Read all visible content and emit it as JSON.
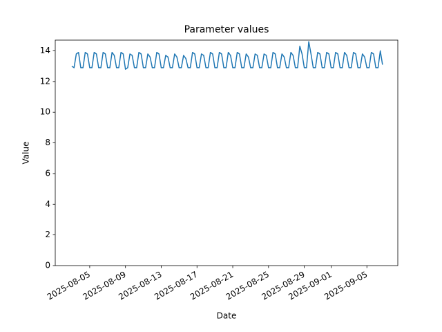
{
  "chart_data": {
    "type": "line",
    "title": "Parameter values",
    "x_label": "Date",
    "y_label": "Value",
    "x": [
      "2025-08-03T00:00",
      "2025-08-03T06:00",
      "2025-08-03T12:00",
      "2025-08-03T18:00",
      "2025-08-04T00:00",
      "2025-08-04T06:00",
      "2025-08-04T12:00",
      "2025-08-04T18:00",
      "2025-08-05T00:00",
      "2025-08-05T06:00",
      "2025-08-05T12:00",
      "2025-08-05T18:00",
      "2025-08-06T00:00",
      "2025-08-06T06:00",
      "2025-08-06T12:00",
      "2025-08-06T18:00",
      "2025-08-07T00:00",
      "2025-08-07T06:00",
      "2025-08-07T12:00",
      "2025-08-07T18:00",
      "2025-08-08T00:00",
      "2025-08-08T06:00",
      "2025-08-08T12:00",
      "2025-08-08T18:00",
      "2025-08-09T00:00",
      "2025-08-09T06:00",
      "2025-08-09T12:00",
      "2025-08-09T18:00",
      "2025-08-10T00:00",
      "2025-08-10T06:00",
      "2025-08-10T12:00",
      "2025-08-10T18:00",
      "2025-08-11T00:00",
      "2025-08-11T06:00",
      "2025-08-11T12:00",
      "2025-08-11T18:00",
      "2025-08-12T00:00",
      "2025-08-12T06:00",
      "2025-08-12T12:00",
      "2025-08-12T18:00",
      "2025-08-13T00:00",
      "2025-08-13T06:00",
      "2025-08-13T12:00",
      "2025-08-13T18:00",
      "2025-08-14T00:00",
      "2025-08-14T06:00",
      "2025-08-14T12:00",
      "2025-08-14T18:00",
      "2025-08-15T00:00",
      "2025-08-15T06:00",
      "2025-08-15T12:00",
      "2025-08-15T18:00",
      "2025-08-16T00:00",
      "2025-08-16T06:00",
      "2025-08-16T12:00",
      "2025-08-16T18:00",
      "2025-08-17T00:00",
      "2025-08-17T06:00",
      "2025-08-17T12:00",
      "2025-08-17T18:00",
      "2025-08-18T00:00",
      "2025-08-18T06:00",
      "2025-08-18T12:00",
      "2025-08-18T18:00",
      "2025-08-19T00:00",
      "2025-08-19T06:00",
      "2025-08-19T12:00",
      "2025-08-19T18:00",
      "2025-08-20T00:00",
      "2025-08-20T06:00",
      "2025-08-20T12:00",
      "2025-08-20T18:00",
      "2025-08-21T00:00",
      "2025-08-21T06:00",
      "2025-08-21T12:00",
      "2025-08-21T18:00",
      "2025-08-22T00:00",
      "2025-08-22T06:00",
      "2025-08-22T12:00",
      "2025-08-22T18:00",
      "2025-08-23T00:00",
      "2025-08-23T06:00",
      "2025-08-23T12:00",
      "2025-08-23T18:00",
      "2025-08-24T00:00",
      "2025-08-24T06:00",
      "2025-08-24T12:00",
      "2025-08-24T18:00",
      "2025-08-25T00:00",
      "2025-08-25T06:00",
      "2025-08-25T12:00",
      "2025-08-25T18:00",
      "2025-08-26T00:00",
      "2025-08-26T06:00",
      "2025-08-26T12:00",
      "2025-08-26T18:00",
      "2025-08-27T00:00",
      "2025-08-27T06:00",
      "2025-08-27T12:00",
      "2025-08-27T18:00",
      "2025-08-28T00:00",
      "2025-08-28T06:00",
      "2025-08-28T12:00",
      "2025-08-28T18:00",
      "2025-08-29T00:00",
      "2025-08-29T06:00",
      "2025-08-29T12:00",
      "2025-08-29T18:00",
      "2025-08-30T00:00",
      "2025-08-30T06:00",
      "2025-08-30T12:00",
      "2025-08-30T18:00",
      "2025-08-31T00:00",
      "2025-08-31T06:00",
      "2025-08-31T12:00",
      "2025-08-31T18:00",
      "2025-09-01T00:00",
      "2025-09-01T06:00",
      "2025-09-01T12:00",
      "2025-09-01T18:00",
      "2025-09-02T00:00",
      "2025-09-02T06:00",
      "2025-09-02T12:00",
      "2025-09-02T18:00",
      "2025-09-03T00:00",
      "2025-09-03T06:00",
      "2025-09-03T12:00",
      "2025-09-03T18:00",
      "2025-09-04T00:00",
      "2025-09-04T06:00",
      "2025-09-04T12:00",
      "2025-09-04T18:00",
      "2025-09-05T00:00",
      "2025-09-05T06:00",
      "2025-09-05T12:00",
      "2025-09-05T18:00",
      "2025-09-06T00:00",
      "2025-09-06T06:00",
      "2025-09-06T12:00",
      "2025-09-06T18:00"
    ],
    "series": [
      {
        "color": "#1f77b4",
        "values": [
          13.0,
          12.9,
          13.8,
          13.9,
          12.9,
          12.9,
          13.9,
          13.8,
          12.9,
          12.9,
          13.9,
          13.8,
          12.9,
          12.9,
          13.9,
          13.8,
          12.9,
          12.9,
          13.9,
          13.7,
          12.9,
          12.9,
          13.9,
          13.8,
          12.8,
          12.9,
          13.8,
          13.7,
          12.9,
          12.9,
          13.9,
          13.8,
          12.9,
          12.9,
          13.8,
          13.6,
          12.9,
          12.9,
          13.9,
          13.8,
          12.9,
          12.9,
          13.7,
          13.6,
          12.9,
          12.9,
          13.8,
          13.6,
          12.9,
          12.9,
          13.7,
          13.5,
          12.9,
          12.9,
          13.9,
          13.8,
          12.9,
          12.9,
          13.8,
          13.7,
          12.9,
          12.9,
          13.9,
          13.8,
          12.9,
          12.9,
          13.9,
          13.8,
          12.9,
          12.9,
          13.9,
          13.7,
          12.9,
          12.9,
          13.9,
          13.8,
          12.9,
          12.9,
          13.8,
          13.6,
          12.9,
          12.9,
          13.8,
          13.7,
          12.9,
          12.9,
          13.8,
          13.7,
          12.9,
          12.9,
          13.9,
          13.8,
          12.9,
          12.9,
          13.8,
          13.6,
          12.9,
          12.9,
          13.9,
          13.7,
          12.9,
          12.9,
          14.3,
          13.8,
          12.9,
          12.9,
          14.6,
          13.8,
          12.9,
          12.9,
          13.9,
          13.8,
          12.9,
          12.9,
          13.9,
          13.8,
          12.9,
          12.9,
          13.9,
          13.8,
          12.9,
          12.9,
          13.9,
          13.7,
          12.9,
          12.9,
          13.9,
          13.8,
          12.9,
          12.9,
          13.8,
          13.6,
          12.9,
          12.9,
          13.9,
          13.8,
          12.9,
          12.9,
          14.0,
          13.1
        ]
      }
    ],
    "xlim": [
      "2025-08-01T03:30",
      "2025-09-08T11:00"
    ],
    "xticks": [
      "2025-08-05",
      "2025-08-09",
      "2025-08-13",
      "2025-08-17",
      "2025-08-21",
      "2025-08-25",
      "2025-08-29",
      "2025-09-01",
      "2025-09-05"
    ],
    "ylim": [
      0,
      14.7
    ],
    "yticks": [
      0,
      2,
      4,
      6,
      8,
      10,
      12,
      14
    ],
    "grid": false
  }
}
